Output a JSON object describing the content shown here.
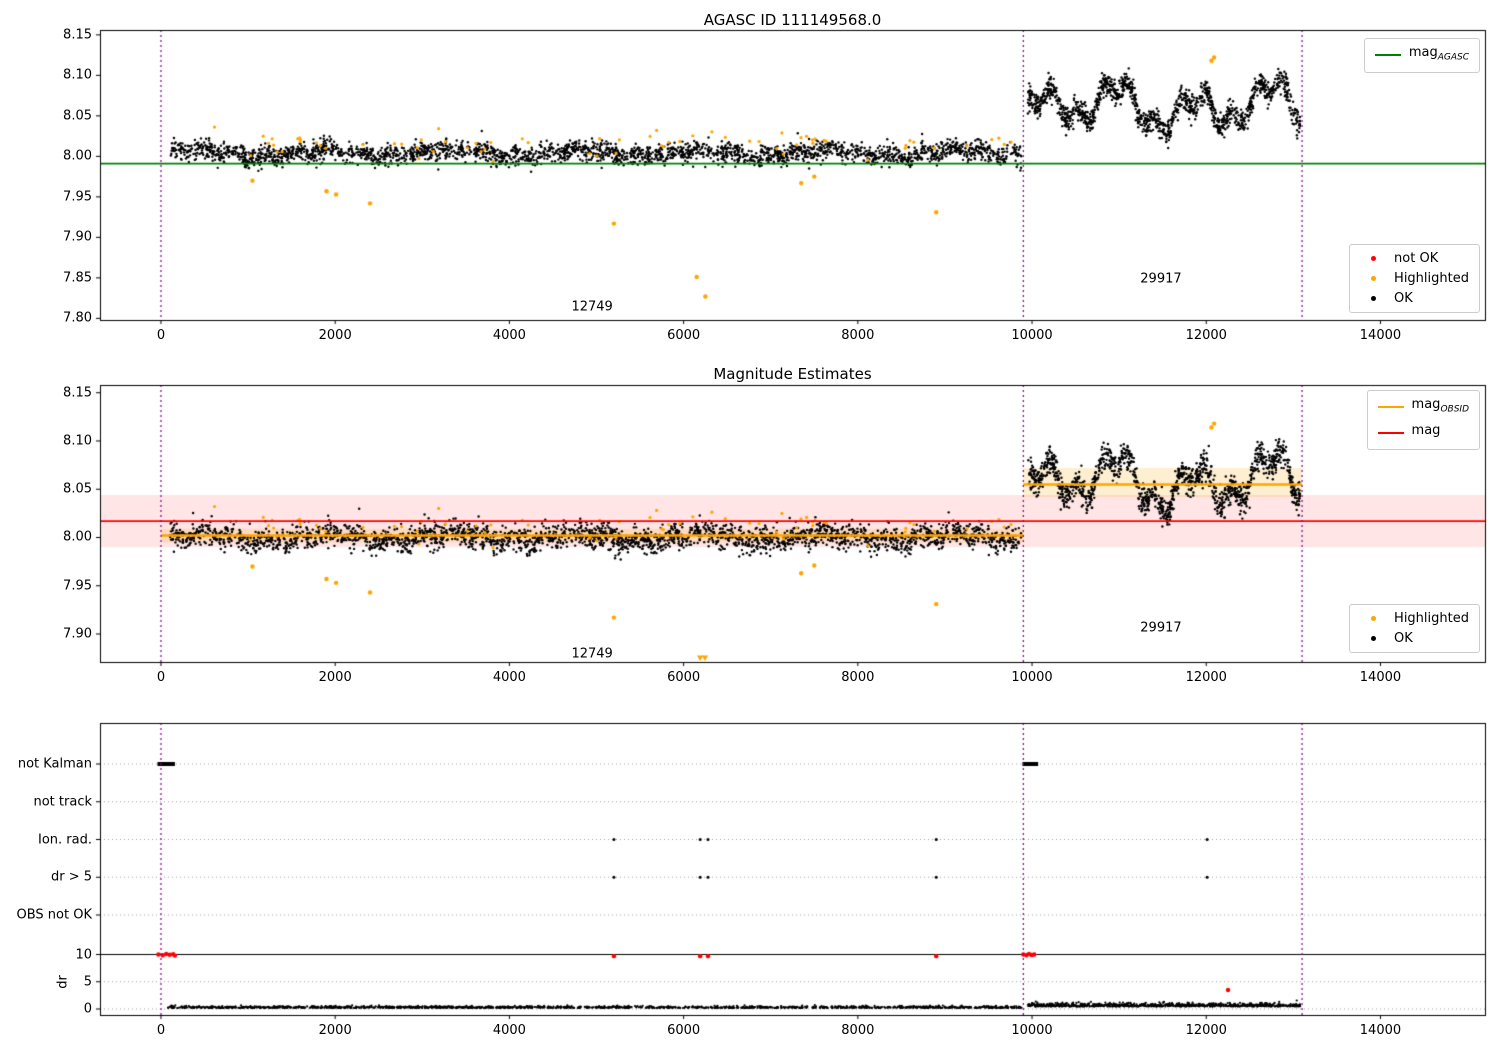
{
  "chart_data": [
    {
      "type": "scatter",
      "title": "AGASC ID 111149568.0",
      "xlim": [
        -700,
        15200
      ],
      "ylim": [
        7.798,
        8.156
      ],
      "xticks": [
        0,
        2000,
        4000,
        6000,
        8000,
        10000,
        12000,
        14000
      ],
      "yticks": [
        7.8,
        7.85,
        7.9,
        7.95,
        8.0,
        8.05,
        8.1,
        8.15
      ],
      "ytick_labels": [
        "7.80",
        "7.85",
        "7.90",
        "7.95",
        "8.00",
        "8.05",
        "8.10",
        "8.15"
      ],
      "vlines": {
        "color": "#800080",
        "x": [
          0,
          9900,
          13100
        ]
      },
      "hlines": [
        {
          "name": "mag-agasc-line",
          "y": 7.991,
          "x0": -700,
          "x1": 15200,
          "color": "#008000",
          "width": 1.8
        }
      ],
      "series": [
        {
          "name": "ok-first-interval",
          "color": "#000000",
          "size": 1.2,
          "gen": {
            "seed": 11,
            "n": 2600,
            "x0": 100,
            "x1": 9880,
            "base": 8.004,
            "waves": [
              {
                "amp": 0.004,
                "period": 230,
                "phase": 0
              },
              {
                "amp": 0.0028,
                "period": 57,
                "phase": 1.1
              }
            ],
            "noise": 0.0062
          }
        },
        {
          "name": "ok-second-interval",
          "color": "#000000",
          "size": 1.2,
          "gen": {
            "seed": 12,
            "n": 1300,
            "x0": 9950,
            "x1": 13080,
            "base": 8.061,
            "waves": [
              {
                "amp": 0.02,
                "period": 140,
                "phase": 0.4
              },
              {
                "amp": 0.012,
                "period": 47,
                "phase": 2.0
              },
              {
                "amp": 0.009,
                "period": 310,
                "phase": 5.2
              }
            ],
            "noise": 0.0072
          }
        },
        {
          "name": "highlighted",
          "color": "#FFA500",
          "size": 1.6,
          "gen": {
            "seed": 13,
            "n": 70,
            "x0": 150,
            "x1": 9800,
            "base": 8.013,
            "waves": [],
            "noise": 0.009
          },
          "points": [
            [
              1050,
              7.97
            ],
            [
              1900,
              7.957
            ],
            [
              2010,
              7.953
            ],
            [
              2400,
              7.942
            ],
            [
              5200,
              7.917
            ],
            [
              6150,
              7.851
            ],
            [
              6250,
              7.827
            ],
            [
              7350,
              7.967
            ],
            [
              7500,
              7.975
            ],
            [
              8900,
              7.931
            ],
            [
              12060,
              8.118
            ],
            [
              12090,
              8.122
            ]
          ]
        }
      ],
      "annotations": [
        {
          "text": "12749",
          "x": 4950,
          "y": 7.814
        },
        {
          "text": "29917",
          "x": 11480,
          "y": 7.849
        }
      ],
      "legends": [
        {
          "entries": [
            {
              "type": "line",
              "color": "#008000",
              "label": "mag",
              "sub": "AGASC"
            }
          ]
        },
        {
          "entries": [
            {
              "type": "dot",
              "color": "#FF0000",
              "label": "not OK",
              "sub": ""
            },
            {
              "type": "dot",
              "color": "#FFA500",
              "label": "Highlighted",
              "sub": ""
            },
            {
              "type": "dot",
              "color": "#000000",
              "label": "OK",
              "sub": ""
            }
          ]
        }
      ]
    },
    {
      "type": "scatter",
      "title": "Magnitude Estimates",
      "xlim": [
        -700,
        15200
      ],
      "ylim": [
        7.871,
        8.158
      ],
      "xticks": [
        0,
        2000,
        4000,
        6000,
        8000,
        10000,
        12000,
        14000
      ],
      "yticks": [
        7.9,
        7.95,
        8.0,
        8.05,
        8.1,
        8.15
      ],
      "ytick_labels": [
        "7.90",
        "7.95",
        "8.00",
        "8.05",
        "8.10",
        "8.15"
      ],
      "vlines": {
        "color": "#800080",
        "x": [
          0,
          9900,
          13100
        ]
      },
      "bands": [
        {
          "x0": -700,
          "x1": 15200,
          "y0": 7.99,
          "y1": 8.044,
          "color": "rgba(255,0,0,0.10)"
        },
        {
          "x0": 0,
          "x1": 9900,
          "y0": 7.995,
          "y1": 8.009,
          "color": "rgba(255,165,0,0.18)"
        },
        {
          "x0": 9900,
          "x1": 13100,
          "y0": 8.042,
          "y1": 8.072,
          "color": "rgba(255,165,0,0.18)"
        }
      ],
      "hlines": [
        {
          "name": "mag-line",
          "y": 8.017,
          "x0": -700,
          "x1": 15200,
          "color": "#FF0000",
          "width": 1.6
        },
        {
          "name": "mag-obsid-line-1",
          "y": 8.002,
          "x0": 0,
          "x1": 9900,
          "color": "#FFA500",
          "width": 2.5
        },
        {
          "name": "mag-obsid-line-2",
          "y": 8.055,
          "x0": 9900,
          "x1": 13100,
          "color": "#FFA500",
          "width": 2.5
        }
      ],
      "series": [
        {
          "name": "ok-first-interval",
          "color": "#000000",
          "size": 1.2,
          "gen": {
            "seed": 21,
            "n": 2600,
            "x0": 100,
            "x1": 9880,
            "base": 8.0,
            "waves": [
              {
                "amp": 0.004,
                "period": 230,
                "phase": 0
              },
              {
                "amp": 0.0028,
                "period": 57,
                "phase": 1.1
              }
            ],
            "noise": 0.0065
          }
        },
        {
          "name": "ok-second-interval",
          "color": "#000000",
          "size": 1.2,
          "gen": {
            "seed": 22,
            "n": 1300,
            "x0": 9950,
            "x1": 13080,
            "base": 8.057,
            "waves": [
              {
                "amp": 0.02,
                "period": 140,
                "phase": 0.4
              },
              {
                "amp": 0.012,
                "period": 47,
                "phase": 2.0
              },
              {
                "amp": 0.009,
                "period": 310,
                "phase": 5.2
              }
            ],
            "noise": 0.0072
          }
        },
        {
          "name": "highlighted",
          "color": "#FFA500",
          "size": 1.6,
          "gen": {
            "seed": 13,
            "n": 70,
            "x0": 150,
            "x1": 9800,
            "base": 8.009,
            "waves": [],
            "noise": 0.009
          },
          "points": [
            [
              1050,
              7.97
            ],
            [
              1900,
              7.957
            ],
            [
              2010,
              7.953
            ],
            [
              2400,
              7.943
            ],
            [
              5200,
              7.917
            ],
            [
              7350,
              7.963
            ],
            [
              7500,
              7.971
            ],
            [
              8900,
              7.931
            ],
            [
              12060,
              8.114
            ],
            [
              12090,
              8.118
            ]
          ]
        },
        {
          "name": "highlighted-clipped",
          "color": "#FFA500",
          "marker": "triangle-down",
          "points": [
            [
              6190,
              7.8745
            ],
            [
              6245,
              7.8745
            ]
          ]
        }
      ],
      "annotations": [
        {
          "text": "12749",
          "x": 4950,
          "y": 7.879
        },
        {
          "text": "29917",
          "x": 11480,
          "y": 7.906
        }
      ],
      "legends": [
        {
          "entries": [
            {
              "type": "line",
              "color": "#FFA500",
              "label": "mag",
              "sub": "OBSID"
            },
            {
              "type": "line",
              "color": "#FF0000",
              "label": "mag",
              "sub": ""
            }
          ]
        },
        {
          "entries": [
            {
              "type": "dot",
              "color": "#FFA500",
              "label": "Highlighted",
              "sub": ""
            },
            {
              "type": "dot",
              "color": "#000000",
              "label": "OK",
              "sub": ""
            }
          ]
        }
      ]
    },
    {
      "type": "flags",
      "categories": [
        "not Kalman",
        "not track",
        "Ion. rad.",
        "dr > 5",
        "OBS not OK"
      ],
      "dr_axis_label": "dr",
      "dr_ticks": [
        0,
        5,
        10
      ],
      "xlim": [
        -700,
        15200
      ],
      "xticks": [
        0,
        2000,
        4000,
        6000,
        8000,
        10000,
        12000,
        14000
      ],
      "vlines": {
        "color": "#800080",
        "x": [
          0,
          9900,
          13100
        ]
      },
      "red_color": "#FF0000",
      "flag_segments": [
        {
          "row": 0,
          "x0": -40,
          "x1": 160
        },
        {
          "row": 0,
          "x0": 9890,
          "x1": 10070
        }
      ],
      "flag_points": [
        {
          "row": 2,
          "x": [
            5200,
            6190,
            6280,
            8900,
            12010
          ]
        },
        {
          "row": 3,
          "x": [
            5200,
            6190,
            6280,
            8900,
            12010
          ]
        }
      ],
      "red_points": [
        [
          -30,
          10
        ],
        [
          20,
          9.85
        ],
        [
          60,
          10.1
        ],
        [
          100,
          9.95
        ],
        [
          140,
          10.05
        ],
        [
          160,
          9.8
        ],
        [
          5200,
          9.7
        ],
        [
          6190,
          9.7
        ],
        [
          6280,
          9.7
        ],
        [
          8900,
          9.7
        ],
        [
          9900,
          10
        ],
        [
          9935,
          9.85
        ],
        [
          9965,
          10.1
        ],
        [
          9995,
          9.9
        ],
        [
          10025,
          10
        ],
        [
          12250,
          3.5
        ]
      ],
      "dr_series": [
        {
          "seed": 31,
          "n": 1500,
          "x0": 80,
          "x1": 9880,
          "base": 0.18,
          "noise": 0.17
        },
        {
          "seed": 32,
          "n": 800,
          "x0": 9950,
          "x1": 13080,
          "base": 0.45,
          "noise": 0.3
        }
      ]
    }
  ]
}
